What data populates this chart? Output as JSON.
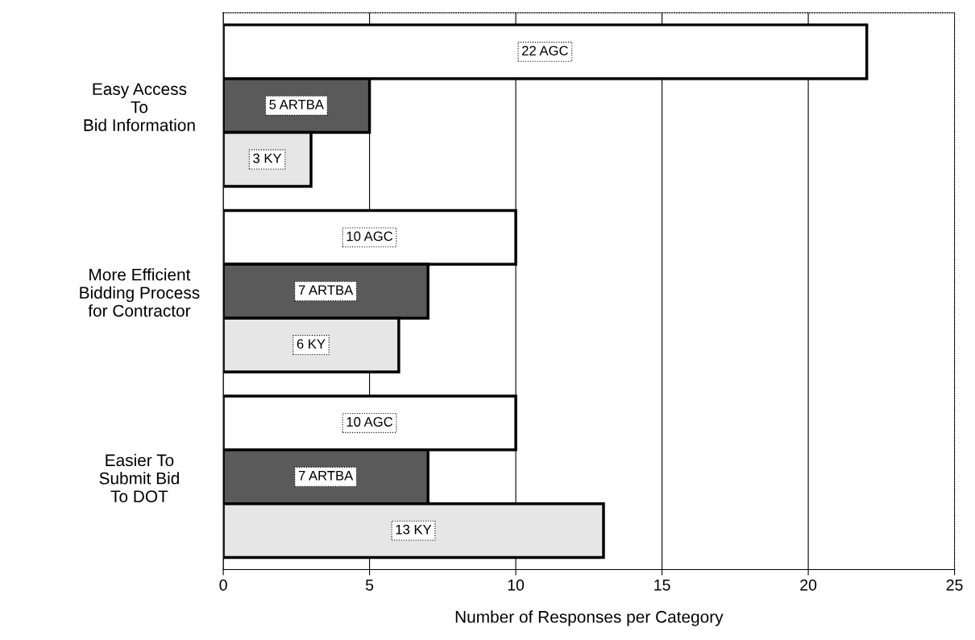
{
  "chart_data": {
    "type": "bar",
    "orientation": "horizontal",
    "xlabel": "Number of Responses per Category",
    "categories": [
      "Easy Access\nTo\nBid Information",
      "More Efficient\nBidding Process\nfor Contractor",
      "Easier To\nSubmit Bid\nTo DOT"
    ],
    "series": [
      {
        "color": "#ffffff",
        "values": [
          22,
          10,
          10
        ],
        "value_labels": [
          "22 AGC",
          "10 AGC",
          "10 AGC"
        ]
      },
      {
        "color": "#5a5a5a",
        "values": [
          5,
          7,
          7
        ],
        "value_labels": [
          "5 ARTBA",
          "7 ARTBA",
          "7 ARTBA"
        ]
      },
      {
        "color": "#e6e6e6",
        "values": [
          3,
          6,
          13
        ],
        "value_labels": [
          "3 KY",
          "6 KY",
          "13 KY"
        ]
      }
    ],
    "xlim": [
      0,
      25
    ],
    "xticks": [
      0,
      5,
      10,
      15,
      20,
      25
    ],
    "grid": "x",
    "legend": false
  }
}
